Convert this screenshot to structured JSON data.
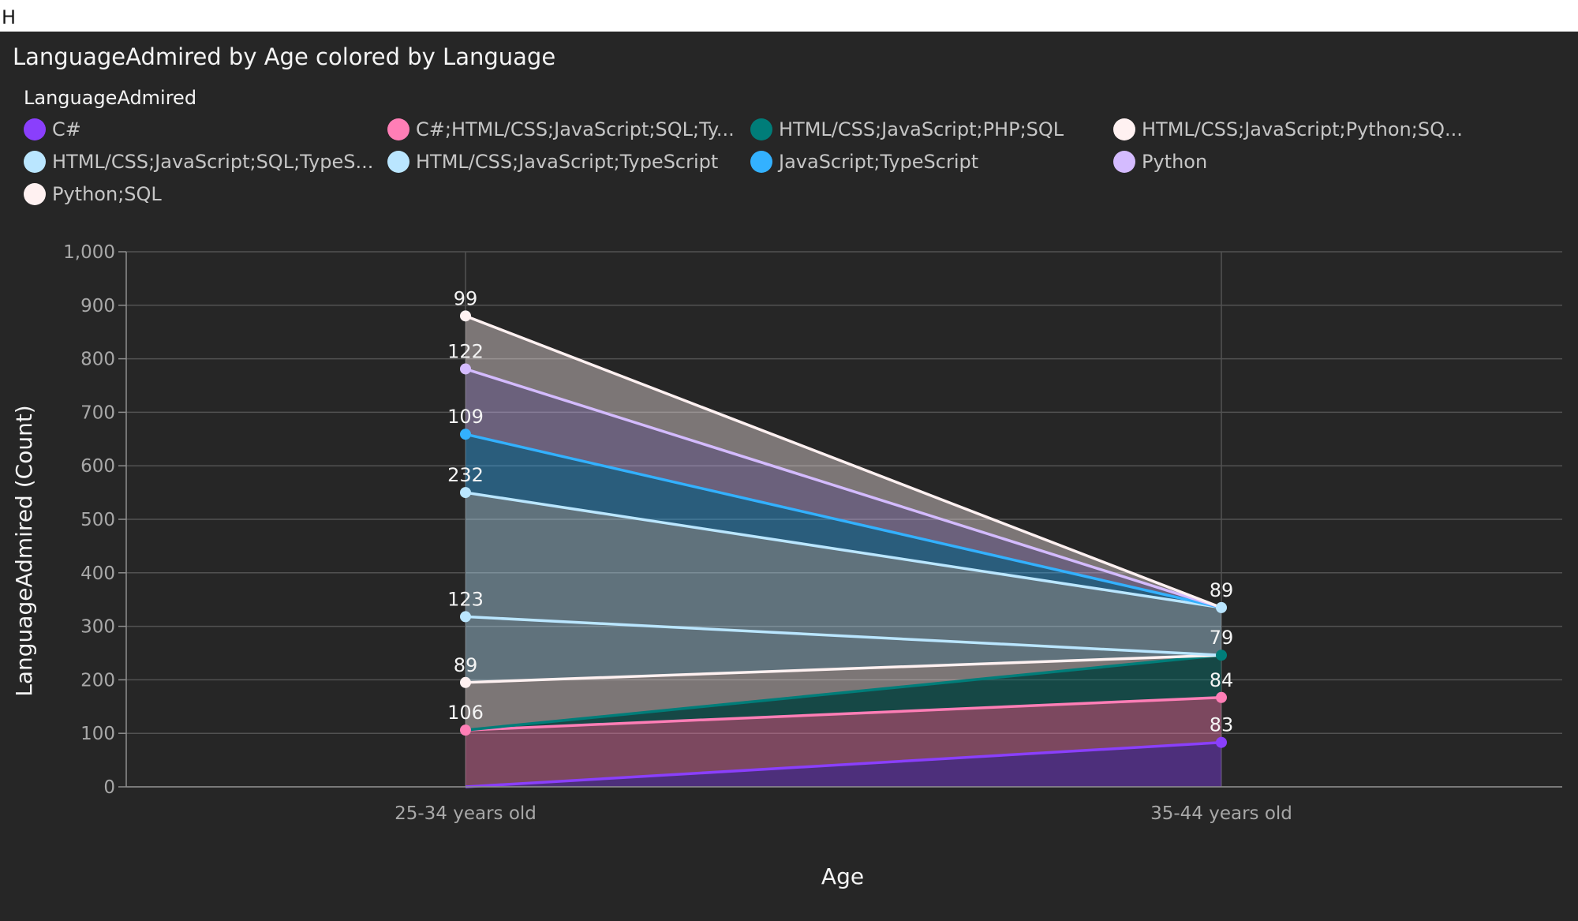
{
  "top_bar": {
    "text": "H"
  },
  "chart_data": {
    "type": "area",
    "stacked": true,
    "title": "LanguageAdmired by Age colored by Language",
    "xlabel": "Age",
    "ylabel": "LanguageAdmired (Count)",
    "ylim": [
      0,
      1000
    ],
    "yticks": [
      "0",
      "100",
      "200",
      "300",
      "400",
      "500",
      "600",
      "700",
      "800",
      "900",
      "1,000"
    ],
    "categories": [
      "25-34 years old",
      "35-44 years old"
    ],
    "legend": {
      "title": "LanguageAdmired",
      "placement": "top"
    },
    "series": [
      {
        "name": "C#",
        "legend_label": "C#",
        "values": [
          0,
          83
        ],
        "labels": [
          null,
          "83"
        ],
        "color": "#8a3ffc"
      },
      {
        "name": "C#;HTML/CSS;JavaScript;SQL;TypeScript",
        "legend_label": "C#;HTML/CSS;JavaScript;SQL;Ty...",
        "values": [
          106,
          84
        ],
        "labels": [
          "106",
          "84"
        ],
        "color": "#ff7eb6"
      },
      {
        "name": "HTML/CSS;JavaScript;PHP;SQL",
        "legend_label": "HTML/CSS;JavaScript;PHP;SQL",
        "values": [
          0,
          79
        ],
        "labels": [
          null,
          "79"
        ],
        "color": "#007d79"
      },
      {
        "name": "HTML/CSS;JavaScript;Python;SQL",
        "legend_label": "HTML/CSS;JavaScript;Python;SQ...",
        "values": [
          89,
          0
        ],
        "labels": [
          "89",
          null
        ],
        "color": "#fff1f1"
      },
      {
        "name": "HTML/CSS;JavaScript;SQL;TypeScript",
        "legend_label": "HTML/CSS;JavaScript;SQL;TypeS...",
        "values": [
          123,
          0
        ],
        "labels": [
          "123",
          null
        ],
        "color": "#bae6ff"
      },
      {
        "name": "HTML/CSS;JavaScript;TypeScript",
        "legend_label": "HTML/CSS;JavaScript;TypeScript",
        "values": [
          232,
          89
        ],
        "labels": [
          "232",
          "89"
        ],
        "color": "#bae6ff"
      },
      {
        "name": "JavaScript;TypeScript",
        "legend_label": "JavaScript;TypeScript",
        "values": [
          109,
          0
        ],
        "labels": [
          "109",
          null
        ],
        "color": "#33b1ff"
      },
      {
        "name": "Python",
        "legend_label": "Python",
        "values": [
          122,
          0
        ],
        "labels": [
          "122",
          null
        ],
        "color": "#d4bbff"
      },
      {
        "name": "Python;SQL",
        "legend_label": "Python;SQL",
        "values": [
          99,
          0
        ],
        "labels": [
          "99",
          null
        ],
        "color": "#fff1f1"
      }
    ],
    "grid": true
  }
}
